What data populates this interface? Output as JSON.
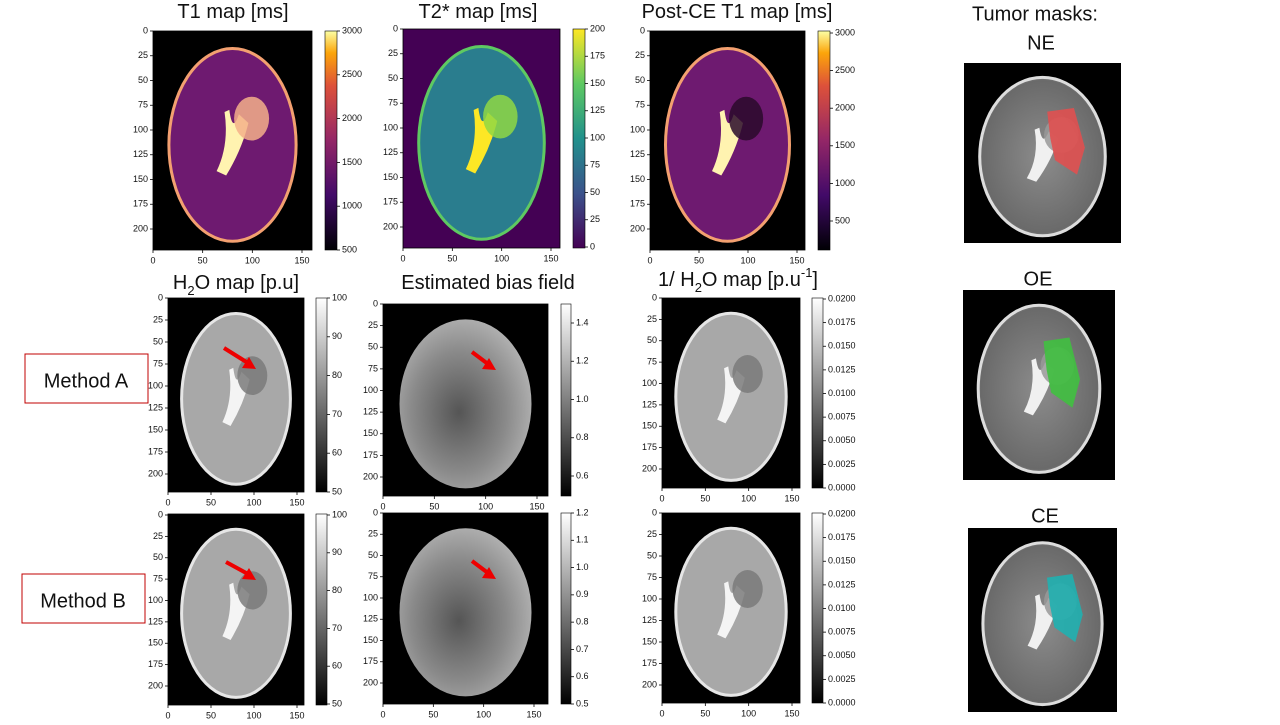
{
  "panels": [
    {
      "title": [
        "T1 map [ms]"
      ],
      "x_ticks": [
        "0",
        "50",
        "100",
        "150"
      ],
      "y_ticks": [
        "0",
        "25",
        "50",
        "75",
        "100",
        "125",
        "150",
        "175",
        "200"
      ],
      "colorbar_ticks": [
        "500",
        "1000",
        "1500",
        "2000",
        "2500",
        "3000"
      ]
    },
    {
      "title": [
        "T2* map [ms]"
      ],
      "x_ticks": [
        "0",
        "50",
        "100",
        "150"
      ],
      "y_ticks": [
        "0",
        "25",
        "50",
        "75",
        "100",
        "125",
        "150",
        "175",
        "200"
      ],
      "colorbar_ticks": [
        "0",
        "25",
        "50",
        "75",
        "100",
        "125",
        "150",
        "175",
        "200"
      ]
    },
    {
      "title": [
        "Post-CE T1 map [ms]"
      ],
      "x_ticks": [
        "0",
        "50",
        "100",
        "150"
      ],
      "y_ticks": [
        "0",
        "25",
        "50",
        "75",
        "100",
        "125",
        "150",
        "175",
        "200"
      ],
      "colorbar_ticks": [
        "500",
        "1000",
        "1500",
        "2000",
        "2500",
        "3000"
      ]
    },
    {
      "title": [
        "H",
        "2",
        "O map [p.u]"
      ],
      "x_ticks": [
        "0",
        "50",
        "100",
        "150"
      ],
      "y_ticks": [
        "0",
        "25",
        "50",
        "75",
        "100",
        "125",
        "150",
        "175",
        "200"
      ],
      "colorbar_ticks": [
        "50",
        "60",
        "70",
        "80",
        "90",
        "100"
      ]
    },
    {
      "title": [
        "Estimated bias field"
      ],
      "x_ticks": [
        "0",
        "50",
        "100",
        "150"
      ],
      "y_ticks": [
        "0",
        "25",
        "50",
        "75",
        "100",
        "125",
        "150",
        "175",
        "200"
      ],
      "colorbar_ticks": [
        "0.6",
        "0.8",
        "1.0",
        "1.2",
        "1.4"
      ]
    },
    {
      "title": [
        "1/ H",
        "2",
        "O map [p.u",
        "-1",
        "]"
      ],
      "x_ticks": [
        "0",
        "50",
        "100",
        "150"
      ],
      "y_ticks": [
        "0",
        "25",
        "50",
        "75",
        "100",
        "125",
        "150",
        "175",
        "200"
      ],
      "colorbar_ticks": [
        "0.0000",
        "0.0025",
        "0.0050",
        "0.0075",
        "0.0100",
        "0.0125",
        "0.0150",
        "0.0175",
        "0.0200"
      ]
    },
    {
      "title": [],
      "x_ticks": [
        "0",
        "50",
        "100",
        "150"
      ],
      "y_ticks": [
        "0",
        "25",
        "50",
        "75",
        "100",
        "125",
        "150",
        "175",
        "200"
      ],
      "colorbar_ticks": [
        "50",
        "60",
        "70",
        "80",
        "90",
        "100"
      ]
    },
    {
      "title": [],
      "x_ticks": [
        "0",
        "50",
        "100",
        "150"
      ],
      "y_ticks": [
        "0",
        "25",
        "50",
        "75",
        "100",
        "125",
        "150",
        "175",
        "200"
      ],
      "colorbar_ticks": [
        "0.5",
        "0.6",
        "0.7",
        "0.8",
        "0.9",
        "1.0",
        "1.1",
        "1.2"
      ]
    },
    {
      "title": [],
      "x_ticks": [
        "0",
        "50",
        "100",
        "150"
      ],
      "y_ticks": [
        "0",
        "25",
        "50",
        "75",
        "100",
        "125",
        "150",
        "175",
        "200"
      ],
      "colorbar_ticks": [
        "0.0000",
        "0.0025",
        "0.0050",
        "0.0075",
        "0.0100",
        "0.0125",
        "0.0150",
        "0.0175",
        "0.0200"
      ]
    }
  ],
  "methods": [
    "Method A",
    "Method B"
  ],
  "tumor_masks": {
    "title": "Tumor masks:",
    "masks": [
      "NE",
      "OE",
      "CE"
    ]
  }
}
